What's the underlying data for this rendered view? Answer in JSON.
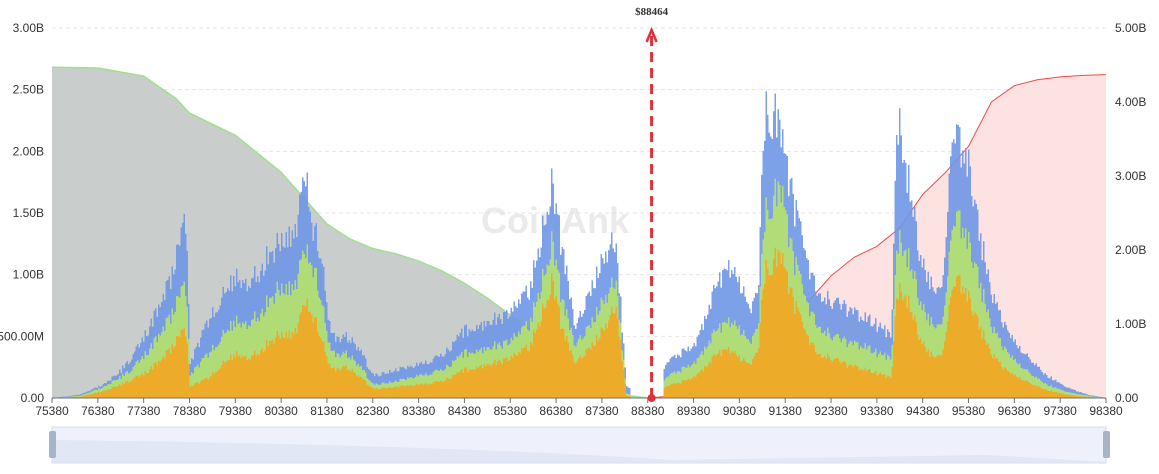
{
  "chart_data": {
    "type": "area",
    "watermark": "CoinAnk",
    "current_price_label": "$88464",
    "current_price": 88464,
    "x_ticks": [
      "75380",
      "76380",
      "77380",
      "78380",
      "79380",
      "80380",
      "81380",
      "82380",
      "83380",
      "84380",
      "85380",
      "86380",
      "87380",
      "88380",
      "89380",
      "90380",
      "91380",
      "92380",
      "93380",
      "94380",
      "95380",
      "96380",
      "97380",
      "98380"
    ],
    "left_axis_ticks": [
      "0.00",
      "500.00M",
      "1.00B",
      "1.50B",
      "2.00B",
      "2.50B",
      "3.00B"
    ],
    "right_axis_ticks": [
      "0.00",
      "1.00B",
      "2.00B",
      "3.00B",
      "4.00B",
      "5.00B"
    ],
    "xlim": [
      75380,
      98380
    ],
    "ylim_left": [
      0,
      3000000000
    ],
    "ylim_right": [
      0,
      5000000000
    ],
    "grid": true,
    "colors": {
      "long_cumulative": "#c9cecc",
      "long_cumulative_line": "#9fe08f",
      "short_cumulative": "#fde2e2",
      "short_cumulative_line": "#ef4b4b",
      "tier_low": "#f7a21b",
      "tier_mid": "#b6e36a",
      "tier_high": "#6f97e6",
      "price_marker": "#e0313a"
    },
    "series": [
      {
        "kind": "liquidation-bars",
        "points": [
          [
            75380,
            0.0,
            0.0,
            0.0
          ],
          [
            75980,
            0.01,
            0.02,
            0.03
          ],
          [
            76380,
            0.05,
            0.08,
            0.1
          ],
          [
            76780,
            0.1,
            0.16,
            0.2
          ],
          [
            77080,
            0.16,
            0.25,
            0.35
          ],
          [
            77380,
            0.22,
            0.38,
            0.55
          ],
          [
            77700,
            0.32,
            0.55,
            0.8
          ],
          [
            77980,
            0.45,
            0.75,
            1.1
          ],
          [
            78180,
            0.58,
            0.95,
            1.45
          ],
          [
            78300,
            0.6,
            1.0,
            1.62
          ],
          [
            78380,
            0.1,
            0.2,
            0.3
          ],
          [
            78780,
            0.18,
            0.4,
            0.7
          ],
          [
            79080,
            0.3,
            0.55,
            0.9
          ],
          [
            79380,
            0.4,
            0.7,
            1.1
          ],
          [
            79680,
            0.35,
            0.65,
            1.0
          ],
          [
            79980,
            0.45,
            0.8,
            1.2
          ],
          [
            80280,
            0.55,
            0.95,
            1.35
          ],
          [
            80580,
            0.55,
            0.95,
            1.4
          ],
          [
            80780,
            0.7,
            1.15,
            1.7
          ],
          [
            80900,
            0.85,
            1.3,
            1.97
          ],
          [
            81050,
            0.75,
            1.2,
            1.55
          ],
          [
            81250,
            0.55,
            0.9,
            1.3
          ],
          [
            81450,
            0.25,
            0.4,
            0.55
          ],
          [
            81750,
            0.28,
            0.4,
            0.55
          ],
          [
            82050,
            0.2,
            0.3,
            0.45
          ],
          [
            82380,
            0.08,
            0.12,
            0.2
          ],
          [
            82880,
            0.1,
            0.15,
            0.25
          ],
          [
            83380,
            0.12,
            0.2,
            0.3
          ],
          [
            83880,
            0.15,
            0.25,
            0.38
          ],
          [
            84380,
            0.25,
            0.4,
            0.6
          ],
          [
            84880,
            0.3,
            0.45,
            0.68
          ],
          [
            85380,
            0.35,
            0.5,
            0.75
          ],
          [
            85780,
            0.45,
            0.65,
            0.95
          ],
          [
            86100,
            0.8,
            1.1,
            1.55
          ],
          [
            86300,
            1.05,
            1.4,
            1.92
          ],
          [
            86500,
            0.6,
            0.85,
            1.3
          ],
          [
            86800,
            0.3,
            0.45,
            0.6
          ],
          [
            87100,
            0.45,
            0.65,
            0.95
          ],
          [
            87300,
            0.55,
            0.8,
            1.15
          ],
          [
            87500,
            0.7,
            0.95,
            1.35
          ],
          [
            87680,
            0.82,
            1.05,
            1.38
          ],
          [
            87900,
            0.02,
            0.04,
            0.1
          ],
          [
            88200,
            0.0,
            0.0,
            0.03
          ],
          [
            88380,
            0.0,
            0.0,
            0.0
          ],
          [
            88780,
            0.1,
            0.18,
            0.3
          ],
          [
            89080,
            0.14,
            0.25,
            0.4
          ],
          [
            89380,
            0.18,
            0.3,
            0.45
          ],
          [
            89780,
            0.35,
            0.55,
            0.9
          ],
          [
            90080,
            0.45,
            0.7,
            1.2
          ],
          [
            90380,
            0.35,
            0.6,
            1.0
          ],
          [
            90580,
            0.3,
            0.5,
            0.8
          ],
          [
            90780,
            0.4,
            0.6,
            0.9
          ],
          [
            90900,
            1.1,
            1.6,
            2.5
          ],
          [
            91100,
            1.2,
            1.75,
            2.5
          ],
          [
            91300,
            1.3,
            1.9,
            2.4
          ],
          [
            91500,
            0.9,
            1.3,
            1.8
          ],
          [
            91780,
            0.6,
            0.9,
            1.3
          ],
          [
            92080,
            0.4,
            0.65,
            0.95
          ],
          [
            92380,
            0.35,
            0.55,
            0.85
          ],
          [
            92680,
            0.3,
            0.5,
            0.8
          ],
          [
            93080,
            0.25,
            0.45,
            0.7
          ],
          [
            93380,
            0.22,
            0.4,
            0.65
          ],
          [
            93680,
            0.18,
            0.35,
            0.55
          ],
          [
            93800,
            0.95,
            1.4,
            2.5
          ],
          [
            94000,
            0.9,
            1.3,
            2.05
          ],
          [
            94250,
            0.6,
            0.95,
            1.4
          ],
          [
            94500,
            0.4,
            0.7,
            1.05
          ],
          [
            94780,
            0.35,
            0.6,
            0.9
          ],
          [
            94980,
            0.9,
            1.4,
            2.15
          ],
          [
            95180,
            1.05,
            1.6,
            2.3
          ],
          [
            95380,
            0.9,
            1.4,
            2.1
          ],
          [
            95580,
            0.65,
            1.05,
            1.5
          ],
          [
            95880,
            0.4,
            0.65,
            0.95
          ],
          [
            96180,
            0.25,
            0.42,
            0.62
          ],
          [
            96480,
            0.18,
            0.3,
            0.45
          ],
          [
            96780,
            0.12,
            0.2,
            0.32
          ],
          [
            97080,
            0.07,
            0.12,
            0.2
          ],
          [
            97380,
            0.04,
            0.07,
            0.12
          ],
          [
            97680,
            0.02,
            0.04,
            0.07
          ],
          [
            97980,
            0.01,
            0.02,
            0.03
          ],
          [
            98380,
            0.0,
            0.0,
            0.0
          ]
        ]
      },
      {
        "kind": "cumulative-long",
        "points": [
          [
            75380,
            4.47
          ],
          [
            76380,
            4.46
          ],
          [
            77380,
            4.35
          ],
          [
            78080,
            4.05
          ],
          [
            78380,
            3.85
          ],
          [
            79380,
            3.55
          ],
          [
            80380,
            3.05
          ],
          [
            80880,
            2.7
          ],
          [
            81380,
            2.35
          ],
          [
            81880,
            2.15
          ],
          [
            82380,
            2.02
          ],
          [
            82880,
            1.95
          ],
          [
            83380,
            1.85
          ],
          [
            83880,
            1.72
          ],
          [
            84380,
            1.55
          ],
          [
            84880,
            1.35
          ],
          [
            85380,
            1.12
          ],
          [
            85880,
            0.9
          ],
          [
            86380,
            0.67
          ],
          [
            86880,
            0.45
          ],
          [
            87380,
            0.2
          ],
          [
            87880,
            0.04
          ],
          [
            88380,
            0.0
          ]
        ]
      },
      {
        "kind": "cumulative-short",
        "points": [
          [
            88380,
            0.0
          ],
          [
            89380,
            0.05
          ],
          [
            89880,
            0.15
          ],
          [
            90380,
            0.28
          ],
          [
            90880,
            0.5
          ],
          [
            91380,
            0.95
          ],
          [
            91880,
            1.3
          ],
          [
            92380,
            1.65
          ],
          [
            92880,
            1.9
          ],
          [
            93380,
            2.05
          ],
          [
            93880,
            2.3
          ],
          [
            94380,
            2.75
          ],
          [
            94880,
            3.05
          ],
          [
            95380,
            3.4
          ],
          [
            95880,
            4.0
          ],
          [
            96380,
            4.22
          ],
          [
            96880,
            4.3
          ],
          [
            97380,
            4.34
          ],
          [
            97880,
            4.36
          ],
          [
            98380,
            4.37
          ]
        ]
      }
    ]
  }
}
